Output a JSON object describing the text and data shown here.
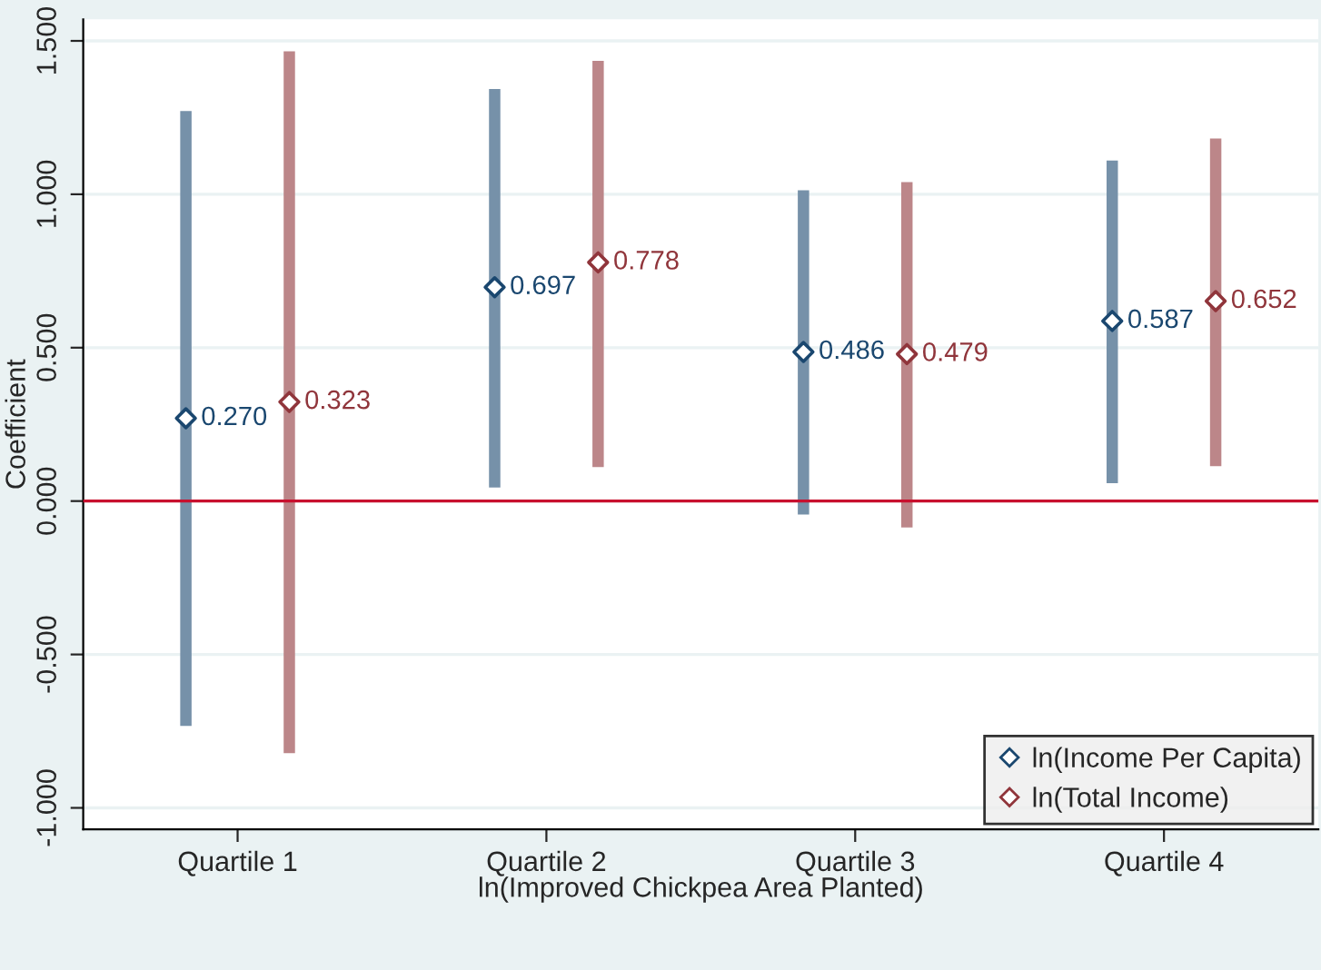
{
  "chart_data": {
    "type": "scatter",
    "xlabel": "ln(Improved Chickpea Area Planted)",
    "ylabel": "Coefficient",
    "categories": [
      "Quartile 1",
      "Quartile 2",
      "Quartile 3",
      "Quartile 4"
    ],
    "series": [
      {
        "name": "ln(Income Per Capita)",
        "color": "#1a476f",
        "values": [
          0.27,
          0.697,
          0.486,
          0.587
        ],
        "value_labels": [
          "0.270",
          "0.697",
          "0.486",
          "0.587"
        ],
        "errors": [
          [
            -0.733,
            1.271
          ],
          [
            0.044,
            1.343
          ],
          [
            -0.044,
            1.013
          ],
          [
            0.058,
            1.11
          ]
        ]
      },
      {
        "name": "ln(Total Income)",
        "color": "#90353b",
        "values": [
          0.323,
          0.778,
          0.479,
          0.652
        ],
        "value_labels": [
          "0.323",
          "0.778",
          "0.479",
          "0.652"
        ],
        "errors": [
          [
            -0.822,
            1.466
          ],
          [
            0.111,
            1.435
          ],
          [
            -0.086,
            1.04
          ],
          [
            0.114,
            1.182
          ]
        ]
      }
    ],
    "ylim": [
      -1.07,
      1.57
    ],
    "yticks": [
      {
        "value": -1,
        "label": "-1.000"
      },
      {
        "value": -0.5,
        "label": "-0.500"
      },
      {
        "value": 0,
        "label": "0.000"
      },
      {
        "value": 0.5,
        "label": "0.500"
      },
      {
        "value": 1,
        "label": "1.000"
      },
      {
        "value": 1.5,
        "label": "1.500"
      }
    ],
    "ref_lines": [
      {
        "axis": "y",
        "value": 0,
        "color": "#c8102e"
      }
    ],
    "grid": "y",
    "legend": "bottom right",
    "marker": "diamond"
  }
}
